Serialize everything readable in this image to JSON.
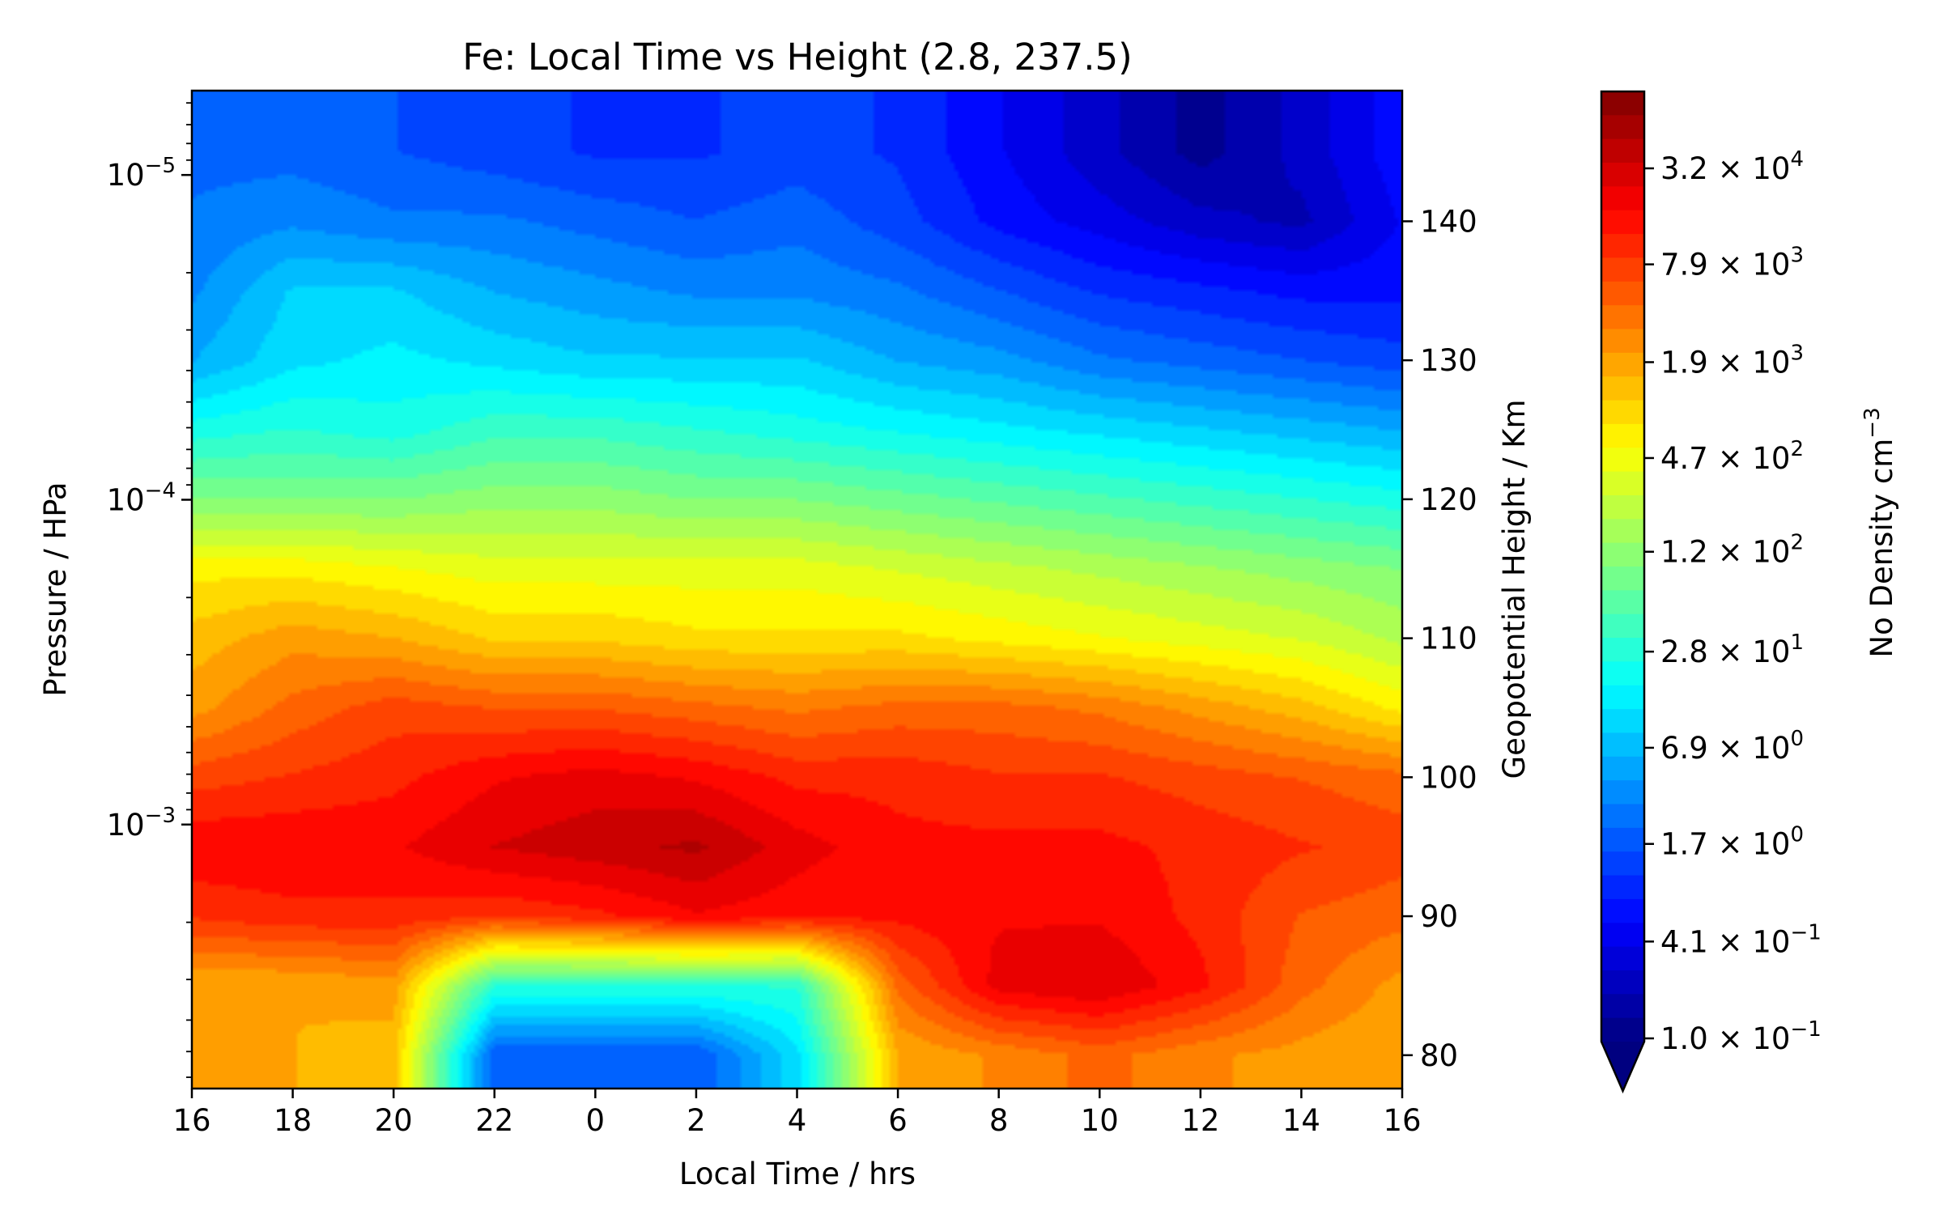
{
  "chart_data": {
    "type": "contour",
    "title": "Fe: Local Time vs Height (2.8, 237.5)",
    "xlabel": "Local Time / hrs",
    "ylabel": "Pressure / HPa",
    "ylabel_right": "Geopotential Height / Km",
    "colorbar_label": "No Density cm",
    "colorbar_label_exponent": "−3",
    "x_ticks": [
      "16",
      "18",
      "20",
      "22",
      "0",
      "2",
      "4",
      "6",
      "8",
      "10",
      "12",
      "14",
      "16"
    ],
    "y_ticks": [
      {
        "mantissa": "10",
        "exponent": "−5"
      },
      {
        "mantissa": "10",
        "exponent": "−4"
      },
      {
        "mantissa": "10",
        "exponent": "−3"
      }
    ],
    "y_scale": "log",
    "y_range_hpa": [
      0.0065,
      5.5e-06
    ],
    "right_ticks": [
      "140",
      "130",
      "120",
      "110",
      "100",
      "90",
      "80"
    ],
    "right_range_km": [
      77.6,
      149.4
    ],
    "colorbar_ticks": [
      {
        "mantissa": "3.2",
        "exponent": "4"
      },
      {
        "mantissa": "7.9",
        "exponent": "3"
      },
      {
        "mantissa": "1.9",
        "exponent": "3"
      },
      {
        "mantissa": "4.7",
        "exponent": "2"
      },
      {
        "mantissa": "1.2",
        "exponent": "2"
      },
      {
        "mantissa": "2.8",
        "exponent": "1"
      },
      {
        "mantissa": "6.9",
        "exponent": "0"
      },
      {
        "mantissa": "1.7",
        "exponent": "0"
      },
      {
        "mantissa": "4.1",
        "exponent": "−1"
      },
      {
        "mantissa": "1.0",
        "exponent": "−1"
      }
    ],
    "colormap": "jet",
    "colorbar_extend": "min",
    "x_hours": [
      16,
      18,
      20,
      22,
      24,
      26,
      28,
      30,
      32,
      34,
      36,
      38,
      40
    ],
    "height_levels_km": [
      80,
      85,
      90,
      95,
      100,
      105,
      110,
      115,
      120,
      125,
      130,
      135,
      140,
      145
    ],
    "log10_density_grid": [
      [
        3.1,
        3.1,
        3.0,
        0.2,
        0.2,
        0.2,
        1.0,
        3.1,
        3.3,
        3.5,
        3.3,
        3.2,
        3.1
      ],
      [
        3.1,
        3.1,
        3.2,
        1.4,
        1.4,
        1.4,
        1.4,
        3.5,
        4.2,
        4.3,
        4.0,
        3.5,
        3.2
      ],
      [
        3.8,
        3.9,
        3.9,
        3.8,
        3.9,
        4.1,
        4.0,
        4.0,
        4.1,
        4.1,
        3.9,
        3.6,
        3.5
      ],
      [
        4.1,
        4.1,
        4.1,
        4.3,
        4.4,
        4.5,
        4.2,
        4.0,
        4.0,
        4.0,
        3.9,
        3.8,
        3.7
      ],
      [
        3.7,
        3.8,
        3.9,
        4.1,
        4.2,
        4.1,
        3.9,
        3.9,
        3.8,
        3.8,
        3.7,
        3.6,
        3.5
      ],
      [
        3.2,
        3.5,
        3.7,
        3.6,
        3.6,
        3.5,
        3.4,
        3.5,
        3.5,
        3.4,
        3.2,
        3.0,
        2.7
      ],
      [
        3.0,
        3.2,
        3.1,
        2.9,
        2.9,
        2.8,
        2.8,
        2.8,
        2.7,
        2.6,
        2.5,
        2.4,
        2.2
      ],
      [
        2.7,
        2.7,
        2.6,
        2.5,
        2.5,
        2.5,
        2.5,
        2.4,
        2.3,
        2.2,
        2.1,
        2.0,
        1.9
      ],
      [
        1.9,
        1.9,
        1.9,
        2.0,
        2.0,
        1.9,
        1.9,
        1.8,
        1.7,
        1.6,
        1.5,
        1.4,
        1.3
      ],
      [
        1.3,
        1.4,
        1.3,
        1.5,
        1.5,
        1.4,
        1.3,
        1.2,
        1.1,
        1.0,
        0.9,
        0.8,
        0.7
      ],
      [
        0.7,
        1.0,
        1.1,
        1.0,
        0.9,
        0.9,
        0.9,
        0.7,
        0.6,
        0.4,
        0.3,
        0.2,
        0.1
      ],
      [
        0.5,
        0.9,
        0.9,
        0.7,
        0.6,
        0.5,
        0.5,
        0.4,
        0.2,
        0.0,
        -0.1,
        -0.2,
        -0.2
      ],
      [
        0.4,
        0.5,
        0.4,
        0.4,
        0.3,
        0.2,
        0.3,
        0.1,
        -0.2,
        -0.4,
        -0.6,
        -0.7,
        -0.3
      ],
      [
        0.3,
        0.3,
        0.2,
        0.1,
        0.0,
        0.0,
        0.1,
        0.0,
        -0.3,
        -0.6,
        -0.9,
        -0.6,
        -0.2
      ]
    ]
  }
}
